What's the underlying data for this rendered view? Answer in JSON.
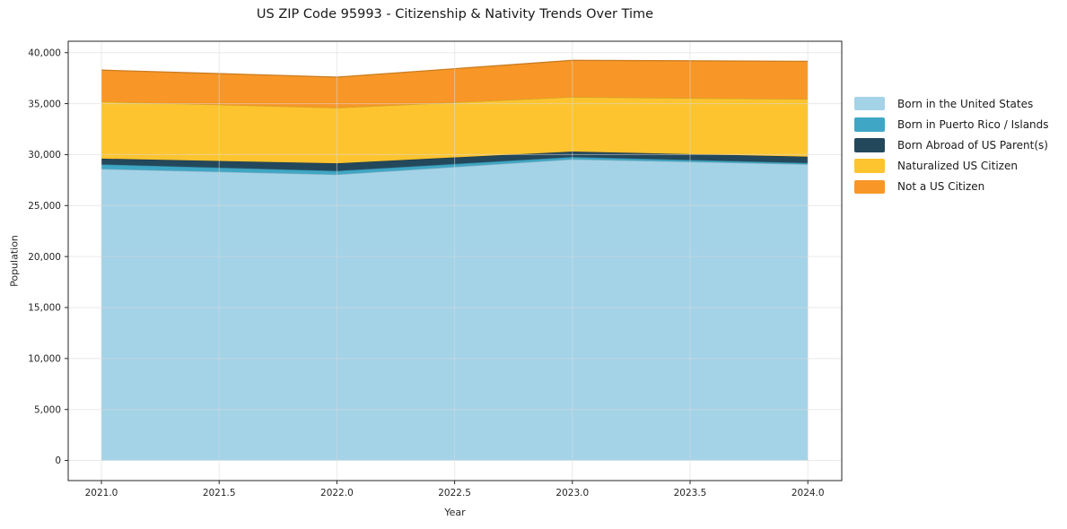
{
  "figure": {
    "title": "US ZIP Code 95993 - Citizenship & Nativity Trends Over Time"
  },
  "chart_data": {
    "type": "area",
    "stacked": true,
    "title": "US ZIP Code 95993 - Citizenship & Nativity Trends Over Time",
    "xlabel": "Year",
    "ylabel": "Population",
    "x": [
      2021,
      2022,
      2023,
      2024
    ],
    "series": [
      {
        "name": "Born in the United States",
        "color": "#A4D3E8",
        "values": [
          28600,
          28050,
          29550,
          29050
        ]
      },
      {
        "name": "Born in Puerto Rico / Islands",
        "color": "#3FA7C5",
        "values": [
          440,
          350,
          220,
          130
        ]
      },
      {
        "name": "Born Abroad of US Parent(s)",
        "color": "#24485B",
        "values": [
          570,
          750,
          530,
          620
        ]
      },
      {
        "name": "Naturalized US Citizen",
        "color": "#FDC42F",
        "values": [
          5580,
          5450,
          5350,
          5650
        ]
      },
      {
        "name": "Not a US Citizen",
        "color": "#F89727",
        "values": [
          3100,
          3000,
          3600,
          3700
        ]
      }
    ],
    "totals": [
      38290,
      37600,
      39250,
      39150
    ],
    "xticks": [
      2021.0,
      2021.5,
      2022.0,
      2022.5,
      2023.0,
      2023.5,
      2024.0
    ],
    "xtick_labels": [
      "2021.0",
      "2021.5",
      "2022.0",
      "2022.5",
      "2023.0",
      "2023.5",
      "2024.0"
    ],
    "yticks": [
      0,
      5000,
      10000,
      15000,
      20000,
      25000,
      30000,
      35000,
      40000
    ],
    "ytick_labels": [
      "0",
      "5,000",
      "10,000",
      "15,000",
      "20,000",
      "25,000",
      "30,000",
      "35,000",
      "40,000"
    ],
    "xlim": [
      2020.859,
      2024.144
    ],
    "ylim": [
      -1975,
      41120
    ],
    "grid": true,
    "legend_position": "right-outside",
    "style": {
      "grid_color": "#d9d9d9",
      "spine_color": "#262626",
      "tick_text_color": "#262626",
      "background": "#ffffff"
    }
  }
}
